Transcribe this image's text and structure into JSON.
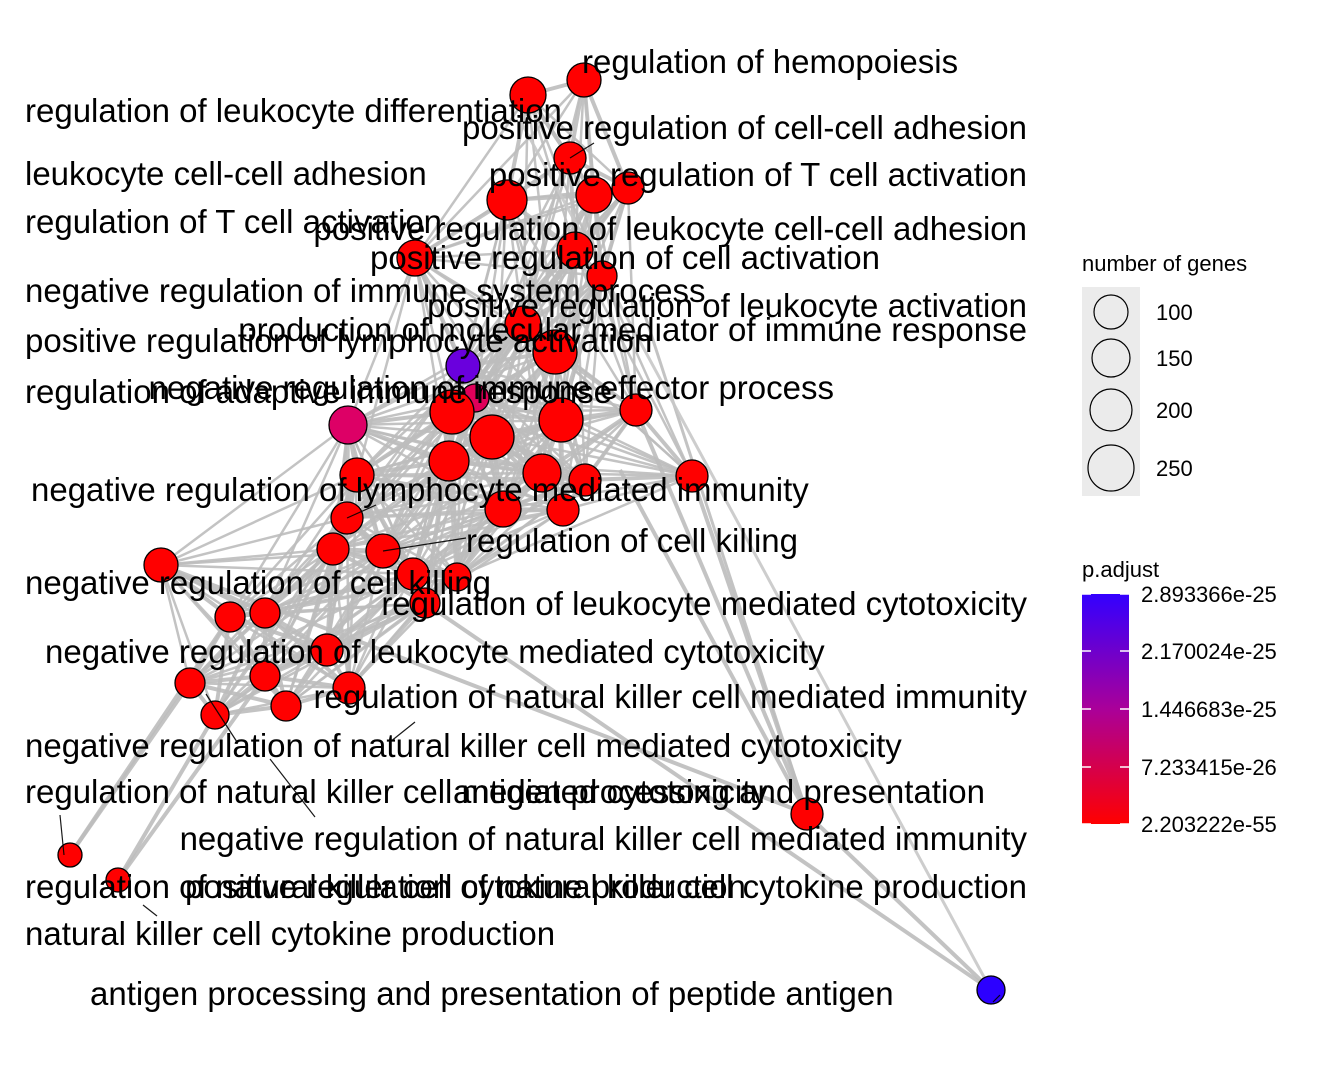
{
  "legend": {
    "size_title": "number of genes",
    "size_items": [
      "100",
      "150",
      "200",
      "250"
    ],
    "color_title": "p.adjust",
    "color_ticks": [
      "2.893366e-25",
      "2.170024e-25",
      "1.446683e-25",
      "7.233415e-26",
      "2.203222e-55"
    ],
    "colors": {
      "high": "#3300FF",
      "mid": "#AA0099",
      "low": "#FF0000"
    }
  },
  "labels": [
    "regulation of hemopoiesis",
    "regulation of leukocyte differentiation",
    "positive regulation of cell-cell adhesion",
    "leukocyte cell-cell adhesion",
    "positive regulation of T cell activation",
    "regulation of T cell activation",
    "positive regulation of leukocyte cell-cell adhesion",
    "positive regulation of cell activation",
    "negative regulation of immune system process",
    "positive regulation of leukocyte activation",
    "production of molecular mediator of immune response",
    "positive regulation of lymphocyte activation",
    "regulation of adaptive immune response",
    "negative regulation of immune effector process",
    "negative regulation of lymphocyte mediated immunity",
    "regulation of cell killing",
    "negative regulation of cell killing",
    "regulation of leukocyte mediated cytotoxicity",
    "negative regulation of leukocyte mediated cytotoxicity",
    "regulation of natural killer cell mediated immunity",
    "negative regulation of natural killer cell mediated cytotoxicity",
    "regulation of natural killer cell mediated cytotoxicity",
    "antigen processing and presentation",
    "negative regulation of natural killer cell mediated immunity",
    "regulation of natural killer cell cytokine production",
    "positive regulation of natural killer cell cytokine production",
    "natural killer cell cytokine production",
    "antigen processing and presentation of peptide antigen"
  ]
}
